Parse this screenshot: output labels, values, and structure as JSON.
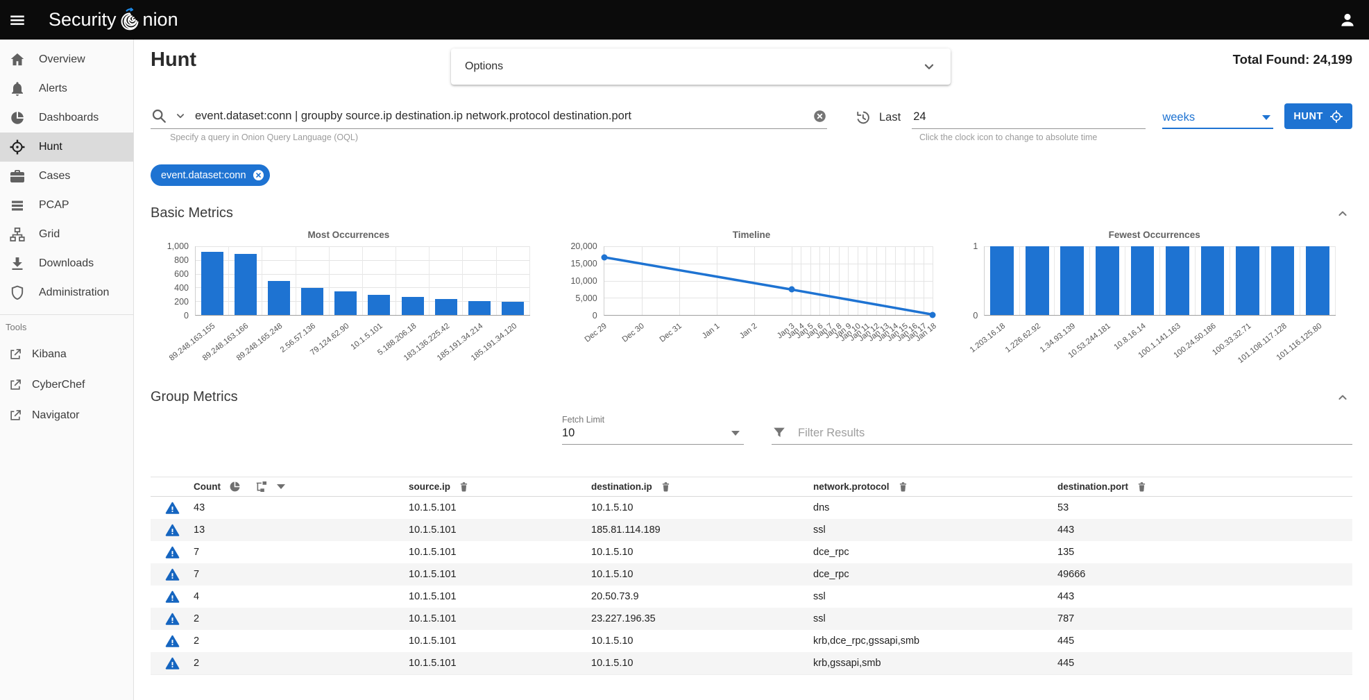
{
  "topbar": {
    "title_left": "Security ",
    "title_right": "nion"
  },
  "sidebar": {
    "items": [
      {
        "label": "Overview",
        "icon": "home"
      },
      {
        "label": "Alerts",
        "icon": "bell"
      },
      {
        "label": "Dashboards",
        "icon": "dashboards"
      },
      {
        "label": "Hunt",
        "icon": "crosshair",
        "selected": true
      },
      {
        "label": "Cases",
        "icon": "briefcase"
      },
      {
        "label": "PCAP",
        "icon": "pcap"
      },
      {
        "label": "Grid",
        "icon": "grid"
      },
      {
        "label": "Downloads",
        "icon": "download"
      },
      {
        "label": "Administration",
        "icon": "shield"
      }
    ],
    "tools_label": "Tools",
    "tools": [
      {
        "label": "Kibana",
        "icon": "external"
      },
      {
        "label": "CyberChef",
        "icon": "external"
      },
      {
        "label": "Navigator",
        "icon": "external"
      }
    ]
  },
  "header": {
    "page_title": "Hunt",
    "options_label": "Options",
    "total_found_label": "Total Found:",
    "total_found_value": "24,199"
  },
  "query": {
    "value": "event.dataset:conn | groupby source.ip destination.ip network.protocol destination.port",
    "hint": "Specify a query in Onion Query Language (OQL)",
    "chip": "event.dataset:conn",
    "time": {
      "last_label": "Last",
      "duration": "24",
      "units": "weeks",
      "hint": "Click the clock icon to change to absolute time"
    },
    "hunt_button": "HUNT"
  },
  "sections": {
    "basic_metrics": "Basic Metrics",
    "group_metrics": "Group Metrics"
  },
  "group_controls": {
    "fetch_limit_label": "Fetch Limit",
    "fetch_limit_value": "10",
    "filter_placeholder": "Filter Results"
  },
  "chart_data": [
    {
      "type": "bar",
      "title": "Most Occurrences",
      "categories": [
        "89.248.163.155",
        "89.248.163.166",
        "89.248.165.248",
        "2.56.57.136",
        "79.124.62.90",
        "10.1.5.101",
        "5.188.206.18",
        "183.136.225.42",
        "185.191.34.214",
        "185.191.34.120"
      ],
      "values": [
        920,
        890,
        500,
        390,
        345,
        290,
        260,
        235,
        200,
        195
      ],
      "ylim": [
        0,
        1000
      ],
      "yticks": [
        "1,000",
        "800",
        "600",
        "400",
        "200",
        "0"
      ],
      "yaxis_width": 64
    },
    {
      "type": "line",
      "title": "Timeline",
      "x": [
        "Dec 29",
        "Dec 30",
        "Dec 31",
        "Jan 1",
        "Jan 2",
        "Jan 3",
        "Jan 4",
        "Jan 5",
        "Jan 6",
        "Jan 7",
        "Jan 8",
        "Jan 9",
        "Jan 10",
        "Jan 11",
        "Jan 12",
        "Jan 13",
        "Jan 14",
        "Jan 15",
        "Jan 16",
        "Jan 17",
        "Jan 18"
      ],
      "points": [
        {
          "x": "Dec 29",
          "y": 16800
        },
        {
          "x": "Jan 3",
          "y": 7400
        },
        {
          "x": "Jan 18",
          "y": 100
        }
      ],
      "ylim": [
        0,
        20000
      ],
      "yticks": [
        "20,000",
        "15,000",
        "10,000",
        "5,000",
        "0"
      ],
      "x_break_index": 5,
      "x_break_fraction": 0.57,
      "yaxis_width": 72
    },
    {
      "type": "bar",
      "title": "Fewest Occurrences",
      "categories": [
        "1.203.16.18",
        "1.226.62.92",
        "1.34.93.139",
        "10.53.244.181",
        "10.8.16.14",
        "100.1.141.163",
        "100.24.50.186",
        "100.33.32.71",
        "101.108.117.128",
        "101.116.125.80"
      ],
      "values": [
        1,
        1,
        1,
        1,
        1,
        1,
        1,
        1,
        1,
        1
      ],
      "ylim": [
        0,
        1
      ],
      "yticks": [
        "1",
        "0"
      ],
      "yaxis_width": 40
    }
  ],
  "table": {
    "columns": [
      "Count",
      "source.ip",
      "destination.ip",
      "network.protocol",
      "destination.port"
    ],
    "rows": [
      [
        "43",
        "10.1.5.101",
        "10.1.5.10",
        "dns",
        "53"
      ],
      [
        "13",
        "10.1.5.101",
        "185.81.114.189",
        "ssl",
        "443"
      ],
      [
        "7",
        "10.1.5.101",
        "10.1.5.10",
        "dce_rpc",
        "135"
      ],
      [
        "7",
        "10.1.5.101",
        "10.1.5.10",
        "dce_rpc",
        "49666"
      ],
      [
        "4",
        "10.1.5.101",
        "20.50.73.9",
        "ssl",
        "443"
      ],
      [
        "2",
        "10.1.5.101",
        "23.227.196.35",
        "ssl",
        "787"
      ],
      [
        "2",
        "10.1.5.101",
        "10.1.5.10",
        "krb,dce_rpc,gssapi,smb",
        "445"
      ],
      [
        "2",
        "10.1.5.101",
        "10.1.5.10",
        "krb,gssapi,smb",
        "445"
      ]
    ]
  },
  "colors": {
    "accent": "#1e73d2",
    "warning_blue": "#1565c0",
    "topbar_bg": "#0b0b0b",
    "sidebar_selected": "#dbdbdb"
  }
}
